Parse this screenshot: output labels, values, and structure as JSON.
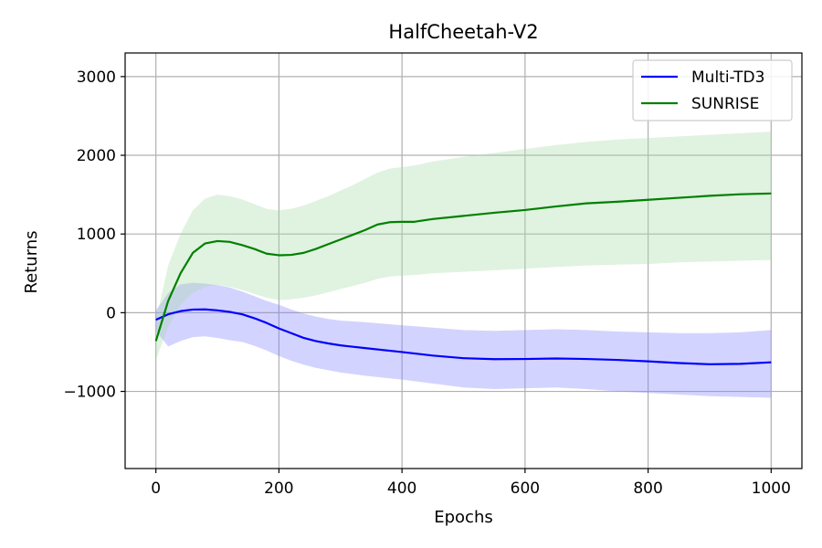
{
  "chart_data": {
    "type": "line",
    "title": "HalfCheetah-V2",
    "xlabel": "Epochs",
    "ylabel": "Returns",
    "xlim": [
      -50,
      1050
    ],
    "ylim": [
      -1980,
      3300
    ],
    "xticks": [
      0,
      200,
      400,
      600,
      800,
      1000
    ],
    "yticks": [
      -1000,
      0,
      1000,
      2000,
      3000
    ],
    "xtick_labels": [
      "0",
      "200",
      "400",
      "600",
      "800",
      "1000"
    ],
    "ytick_labels": [
      "−1000",
      "0",
      "1000",
      "2000",
      "3000"
    ],
    "grid": true,
    "legend_position": "top-right",
    "series": [
      {
        "name": "Multi-TD3",
        "color": "#0000ff",
        "band_color": "#8080ff",
        "x": [
          0,
          20,
          40,
          60,
          80,
          100,
          120,
          140,
          160,
          180,
          200,
          220,
          240,
          260,
          280,
          300,
          340,
          400,
          450,
          500,
          550,
          600,
          650,
          700,
          750,
          800,
          850,
          900,
          950,
          1000
        ],
        "y": [
          -90,
          -20,
          20,
          40,
          42,
          30,
          10,
          -20,
          -70,
          -130,
          -200,
          -260,
          -320,
          -360,
          -390,
          -415,
          -450,
          -500,
          -545,
          -578,
          -590,
          -588,
          -582,
          -588,
          -600,
          -618,
          -640,
          -655,
          -650,
          -630
        ],
        "band_low": [
          -230,
          -430,
          -360,
          -310,
          -300,
          -320,
          -350,
          -370,
          -420,
          -480,
          -550,
          -610,
          -660,
          -700,
          -730,
          -760,
          -800,
          -850,
          -900,
          -950,
          -970,
          -960,
          -950,
          -970,
          -1000,
          -1020,
          -1040,
          -1060,
          -1070,
          -1080
        ],
        "band_high": [
          30,
          250,
          360,
          380,
          370,
          350,
          320,
          270,
          210,
          150,
          100,
          40,
          -10,
          -50,
          -80,
          -100,
          -120,
          -160,
          -190,
          -220,
          -230,
          -220,
          -210,
          -220,
          -240,
          -250,
          -260,
          -260,
          -250,
          -220
        ]
      },
      {
        "name": "SUNRISE",
        "color": "#008000",
        "band_color": "#a6d9a6",
        "x": [
          0,
          20,
          40,
          60,
          80,
          100,
          120,
          140,
          160,
          180,
          200,
          220,
          240,
          260,
          280,
          300,
          320,
          340,
          360,
          380,
          400,
          420,
          450,
          500,
          550,
          600,
          650,
          700,
          750,
          800,
          850,
          900,
          950,
          1000
        ],
        "y": [
          -360,
          150,
          500,
          760,
          880,
          910,
          900,
          860,
          810,
          750,
          730,
          735,
          760,
          810,
          870,
          930,
          990,
          1050,
          1120,
          1150,
          1155,
          1155,
          1190,
          1230,
          1270,
          1305,
          1350,
          1390,
          1410,
          1435,
          1460,
          1485,
          1505,
          1515
        ],
        "band_low": [
          -600,
          -180,
          100,
          250,
          330,
          350,
          330,
          290,
          240,
          190,
          160,
          170,
          190,
          220,
          260,
          300,
          340,
          380,
          430,
          460,
          470,
          480,
          500,
          520,
          540,
          560,
          580,
          600,
          610,
          620,
          640,
          650,
          660,
          670
        ],
        "band_high": [
          -100,
          600,
          1000,
          1300,
          1450,
          1500,
          1480,
          1440,
          1380,
          1320,
          1300,
          1320,
          1360,
          1420,
          1480,
          1550,
          1620,
          1700,
          1780,
          1830,
          1850,
          1870,
          1920,
          1980,
          2030,
          2080,
          2130,
          2170,
          2200,
          2220,
          2240,
          2260,
          2280,
          2300
        ]
      }
    ]
  }
}
